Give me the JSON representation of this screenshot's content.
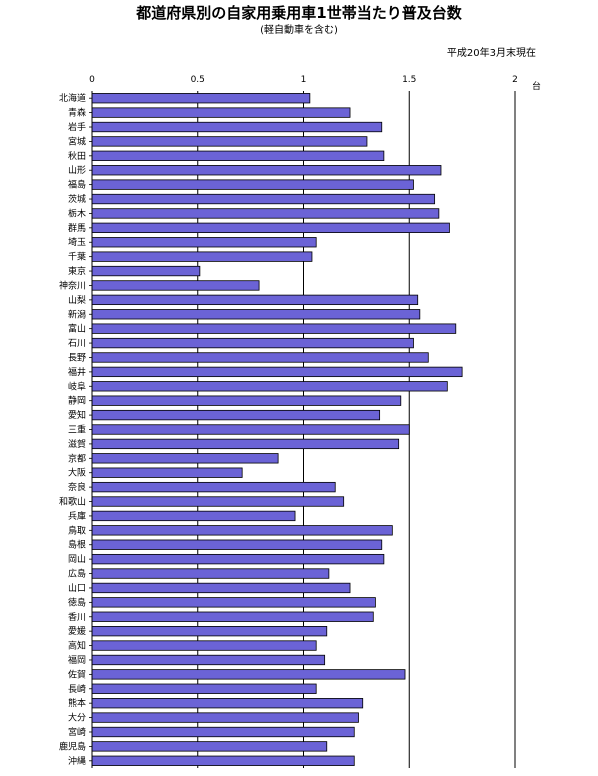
{
  "chart_data": {
    "type": "bar",
    "orientation": "horizontal",
    "title": "都道府県別の自家用乗用車1世帯当たり普及台数",
    "subtitle": "(軽自動車を含む)",
    "date_note": "平成20年3月末現在",
    "unit_label": "台",
    "xlim": [
      0,
      2
    ],
    "x_ticks": [
      "0",
      "0.5",
      "1",
      "1.5",
      "2"
    ],
    "bar_color": "#6b63d6",
    "grid": true,
    "categories": [
      "北海道",
      "青森",
      "岩手",
      "宮城",
      "秋田",
      "山形",
      "福島",
      "茨城",
      "栃木",
      "群馬",
      "埼玉",
      "千葉",
      "東京",
      "神奈川",
      "山梨",
      "新潟",
      "富山",
      "石川",
      "長野",
      "福井",
      "岐阜",
      "静岡",
      "愛知",
      "三重",
      "滋賀",
      "京都",
      "大阪",
      "奈良",
      "和歌山",
      "兵庫",
      "鳥取",
      "島根",
      "岡山",
      "広島",
      "山口",
      "徳島",
      "香川",
      "愛媛",
      "高知",
      "福岡",
      "佐賀",
      "長崎",
      "熊本",
      "大分",
      "宮崎",
      "鹿児島",
      "沖縄"
    ],
    "values": [
      1.03,
      1.22,
      1.37,
      1.3,
      1.38,
      1.65,
      1.52,
      1.62,
      1.64,
      1.69,
      1.06,
      1.04,
      0.51,
      0.79,
      1.54,
      1.55,
      1.72,
      1.52,
      1.59,
      1.75,
      1.68,
      1.46,
      1.36,
      1.5,
      1.45,
      0.88,
      0.71,
      1.15,
      1.19,
      0.96,
      1.42,
      1.37,
      1.38,
      1.12,
      1.22,
      1.34,
      1.33,
      1.11,
      1.06,
      1.1,
      1.48,
      1.06,
      1.28,
      1.26,
      1.24,
      1.11,
      1.24
    ]
  }
}
